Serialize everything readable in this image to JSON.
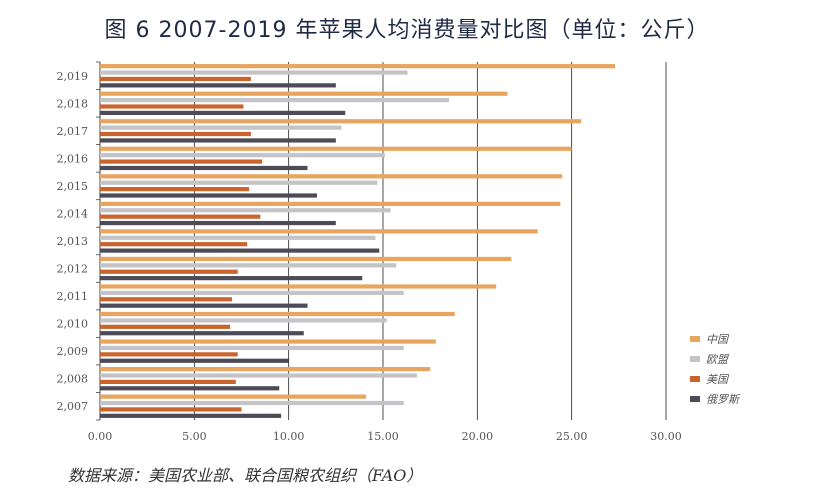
{
  "title": "图 6  2007-2019 年苹果人均消费量对比图（单位：公斤）",
  "source": "数据来源：美国农业部、联合国粮农组织（FAO）",
  "colors": {
    "中国": "#e8a560",
    "欧盟": "#c4c4c8",
    "美国": "#c8642c",
    "俄罗斯": "#4d4b57"
  },
  "chart_data": {
    "type": "bar",
    "orientation": "horizontal",
    "title": "图 6  2007-2019 年苹果人均消费量对比图（单位：公斤）",
    "xlabel": "",
    "ylabel": "",
    "xlim": [
      0,
      30
    ],
    "x_ticks": [
      "0.00",
      "5.00",
      "10.00",
      "15.00",
      "20.00",
      "25.00",
      "30.00"
    ],
    "grid": true,
    "legend_position": "right",
    "categories": [
      "2,019",
      "2,018",
      "2,017",
      "2,016",
      "2,015",
      "2,014",
      "2,013",
      "2,012",
      "2,011",
      "2,010",
      "2,009",
      "2,008",
      "2,007"
    ],
    "series": [
      {
        "name": "中国",
        "values": [
          27.3,
          21.6,
          25.5,
          25.0,
          24.5,
          24.4,
          23.2,
          21.8,
          21.0,
          18.8,
          17.8,
          17.5,
          14.1
        ]
      },
      {
        "name": "欧盟",
        "values": [
          16.3,
          18.5,
          12.8,
          15.1,
          14.7,
          15.4,
          14.6,
          15.7,
          16.1,
          15.2,
          16.1,
          16.8,
          16.1
        ]
      },
      {
        "name": "美国",
        "values": [
          8.0,
          7.6,
          8.0,
          8.6,
          7.9,
          8.5,
          7.8,
          7.3,
          7.0,
          6.9,
          7.3,
          7.2,
          7.5
        ]
      },
      {
        "name": "俄罗斯",
        "values": [
          12.5,
          13.0,
          12.5,
          11.0,
          11.5,
          12.5,
          14.8,
          13.9,
          11.0,
          10.8,
          10.0,
          9.5,
          9.6
        ]
      }
    ]
  }
}
